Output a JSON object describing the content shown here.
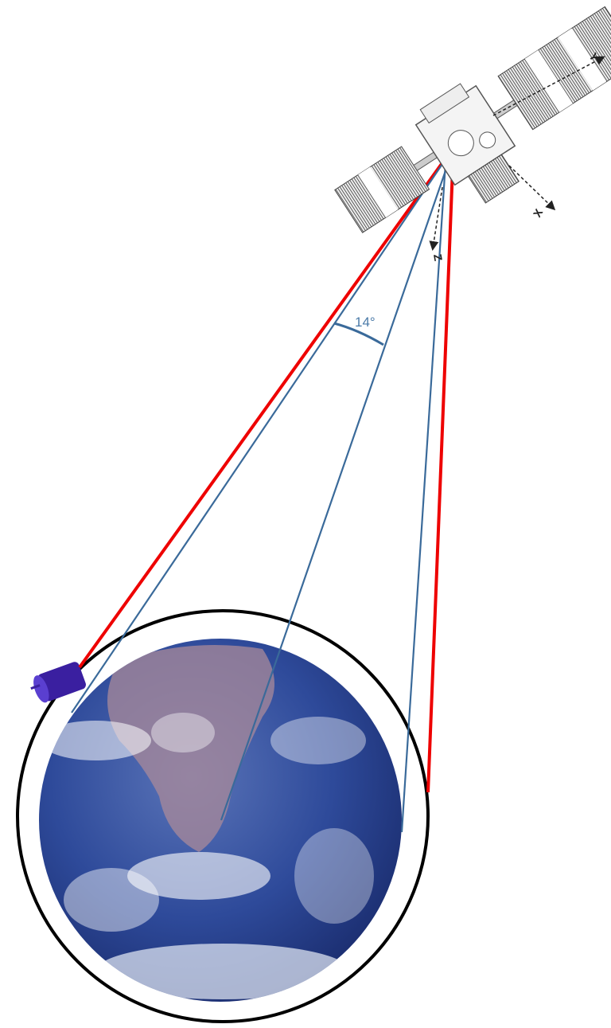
{
  "labels": {
    "angle": "14°",
    "axis_x": "X",
    "axis_y": "Y",
    "axis_z": "Z"
  }
}
